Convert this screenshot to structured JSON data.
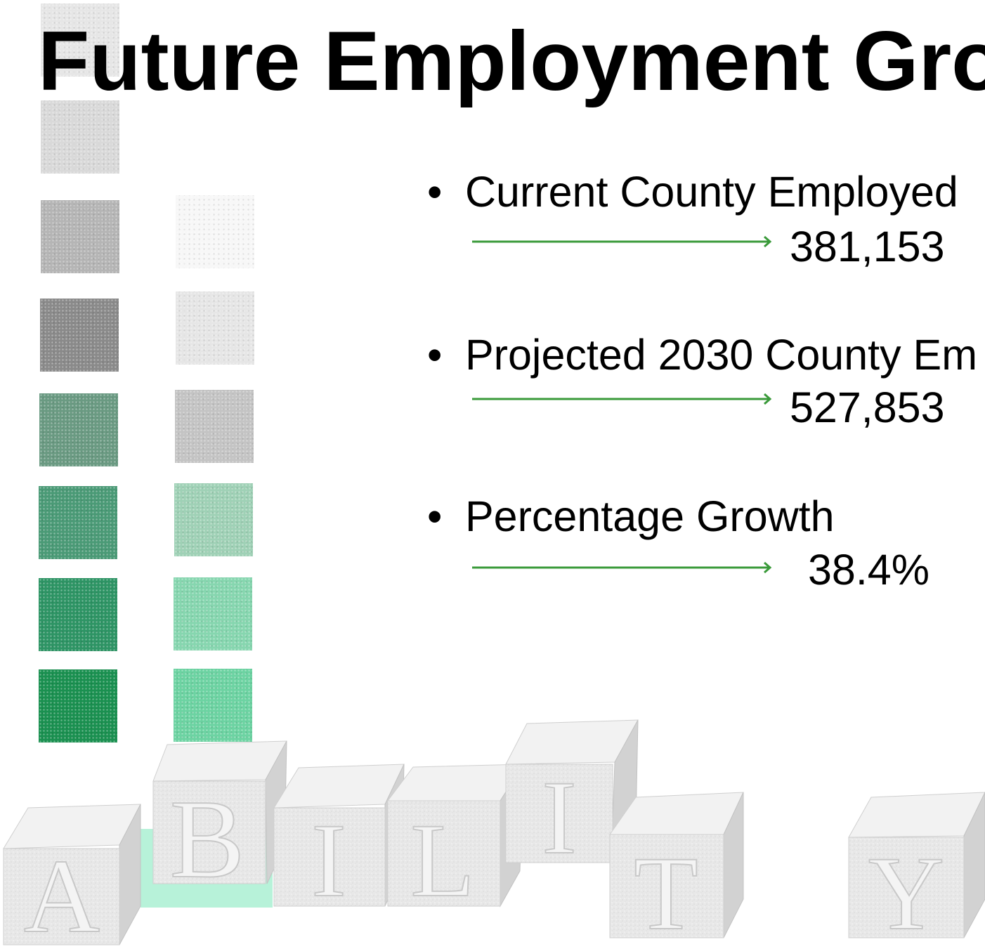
{
  "title": "Future Employment Grow",
  "bullets": [
    {
      "label": "Current County Employed",
      "value": "381,153"
    },
    {
      "label": "Projected 2030 County Em",
      "value": "527,853"
    },
    {
      "label": "Percentage Growth",
      "value": "38.4%"
    }
  ],
  "blocks": {
    "letters": [
      "A",
      "B",
      "I",
      "L",
      "I",
      "T",
      "Y"
    ]
  },
  "colors": {
    "arrow": "#3a9a3a",
    "accent_green": "#1a9a5a",
    "block_face": "#e6e6e6"
  }
}
